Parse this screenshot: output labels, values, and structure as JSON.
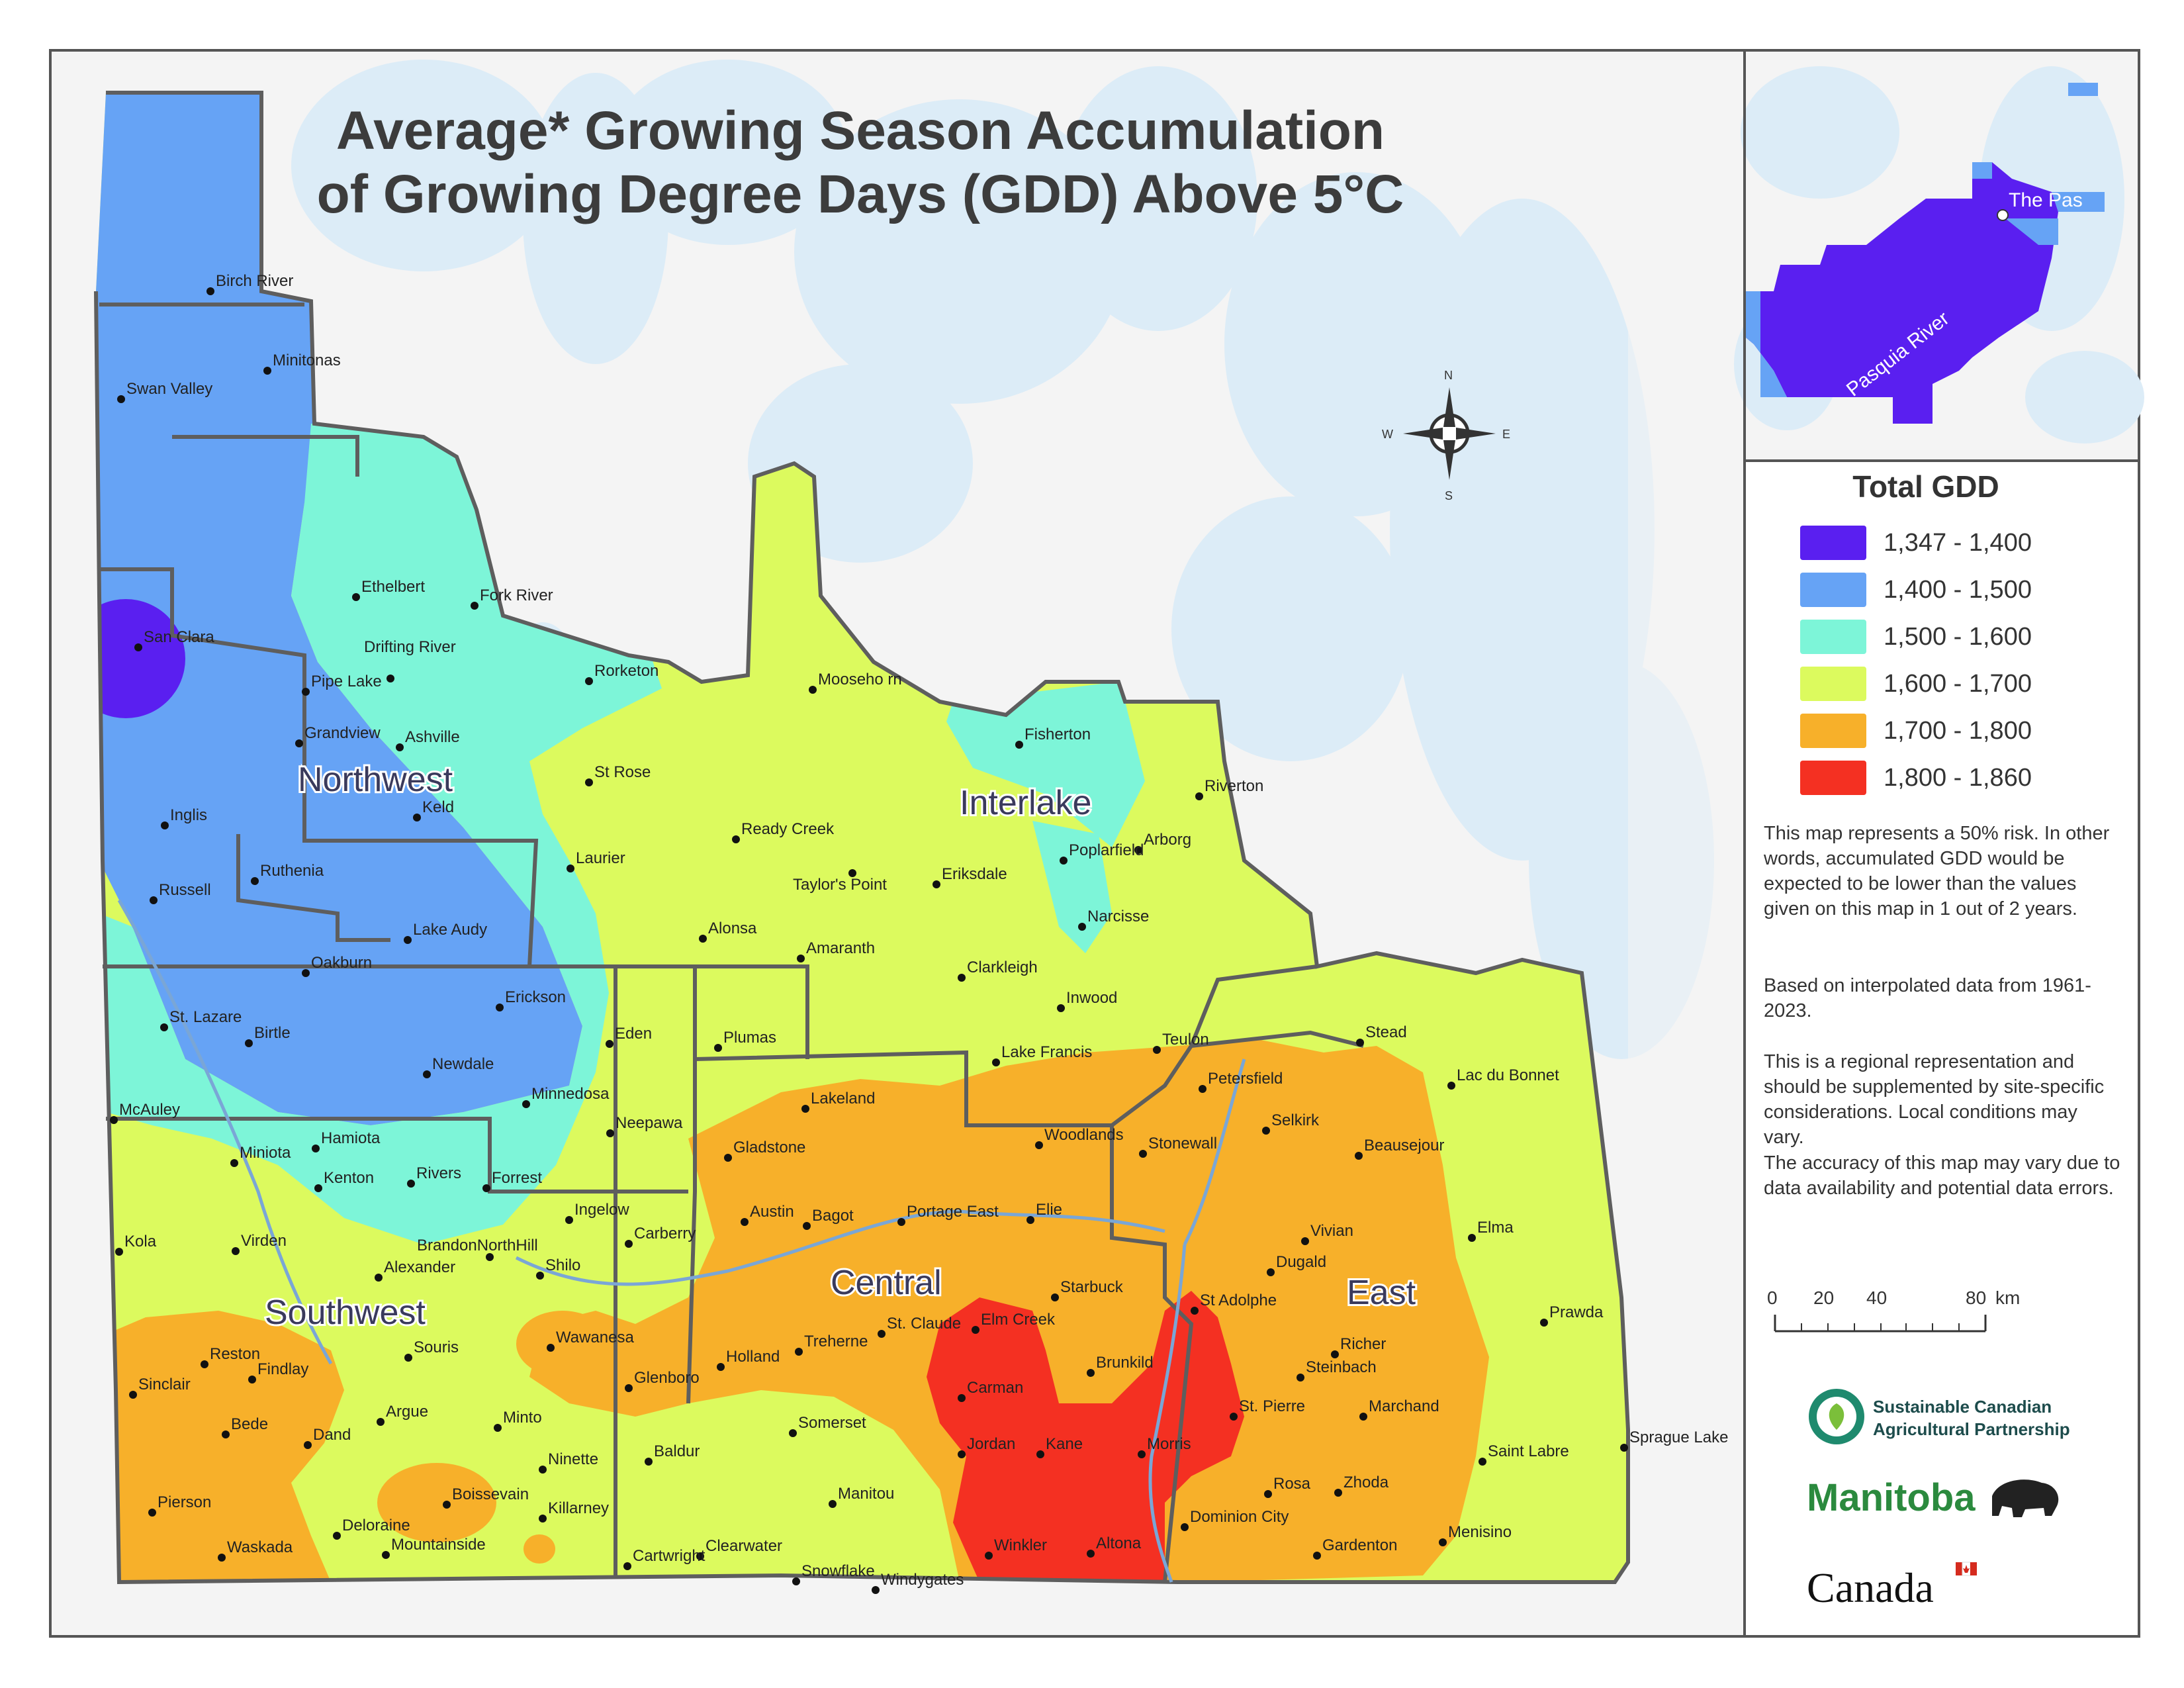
{
  "title": {
    "line1": "Average* Growing Season Accumulation",
    "line2": "of Growing Degree Days (GDD) Above 5°C"
  },
  "regions": [
    "Northwest",
    "Interlake",
    "Southwest",
    "Central",
    "East"
  ],
  "cities": [
    {
      "name": "Birch River"
    },
    {
      "name": "Minitonas"
    },
    {
      "name": "Swan Valley"
    },
    {
      "name": "Ethelbert"
    },
    {
      "name": "Fork River"
    },
    {
      "name": "San Clara"
    },
    {
      "name": "Drifting River"
    },
    {
      "name": "Pipe Lake"
    },
    {
      "name": "Rorketon"
    },
    {
      "name": "Mooseho rn"
    },
    {
      "name": "Grandview"
    },
    {
      "name": "Ashville"
    },
    {
      "name": "Fisherton"
    },
    {
      "name": "St Rose"
    },
    {
      "name": "Keld"
    },
    {
      "name": "Riverton"
    },
    {
      "name": "Inglis"
    },
    {
      "name": "Ready Creek"
    },
    {
      "name": "Arborg"
    },
    {
      "name": "Laurier"
    },
    {
      "name": "Poplarfield"
    },
    {
      "name": "Ruthenia"
    },
    {
      "name": "Taylor's Point"
    },
    {
      "name": "Eriksdale"
    },
    {
      "name": "Russell"
    },
    {
      "name": "Alonsa"
    },
    {
      "name": "Narcisse"
    },
    {
      "name": "Lake Audy"
    },
    {
      "name": "Amaranth"
    },
    {
      "name": "Oakburn"
    },
    {
      "name": "Clarkleigh"
    },
    {
      "name": "Erickson"
    },
    {
      "name": "Inwood"
    },
    {
      "name": "St. Lazare"
    },
    {
      "name": "Eden"
    },
    {
      "name": "Birtle"
    },
    {
      "name": "Plumas"
    },
    {
      "name": "Teulon"
    },
    {
      "name": "Stead"
    },
    {
      "name": "Newdale"
    },
    {
      "name": "Lake Francis"
    },
    {
      "name": "Petersfield"
    },
    {
      "name": "Lac du Bonnet"
    },
    {
      "name": "Minnedosa"
    },
    {
      "name": "Lakeland"
    },
    {
      "name": "McAuley"
    },
    {
      "name": "Neepawa"
    },
    {
      "name": "Hamiota"
    },
    {
      "name": "Miniota"
    },
    {
      "name": "Woodlands"
    },
    {
      "name": "Selkirk"
    },
    {
      "name": "Gladstone"
    },
    {
      "name": "Stonewall"
    },
    {
      "name": "Beausejour"
    },
    {
      "name": "Rivers"
    },
    {
      "name": "Forrest"
    },
    {
      "name": "Kenton"
    },
    {
      "name": "Ingelow"
    },
    {
      "name": "Portage East"
    },
    {
      "name": "Austin"
    },
    {
      "name": "Bagot"
    },
    {
      "name": "Elie"
    },
    {
      "name": "Vivian"
    },
    {
      "name": "Carberry"
    },
    {
      "name": "Elma"
    },
    {
      "name": "Kola"
    },
    {
      "name": "Virden"
    },
    {
      "name": "BrandonNorthHill"
    },
    {
      "name": "Dugald"
    },
    {
      "name": "Shilo"
    },
    {
      "name": "Alexander"
    },
    {
      "name": "Starbuck"
    },
    {
      "name": "St Adolphe"
    },
    {
      "name": "Prawda"
    },
    {
      "name": "Elm Creek"
    },
    {
      "name": "St. Claude"
    },
    {
      "name": "Wawanesa"
    },
    {
      "name": "Treherne"
    },
    {
      "name": "Richer"
    },
    {
      "name": "Reston"
    },
    {
      "name": "Souris"
    },
    {
      "name": "Brunkild"
    },
    {
      "name": "Steinbach"
    },
    {
      "name": "Holland"
    },
    {
      "name": "Findlay"
    },
    {
      "name": "Glenboro"
    },
    {
      "name": "Sinclair"
    },
    {
      "name": "Carman"
    },
    {
      "name": "St. Pierre"
    },
    {
      "name": "Marchand"
    },
    {
      "name": "Argue"
    },
    {
      "name": "Minto"
    },
    {
      "name": "Bede"
    },
    {
      "name": "Somerset"
    },
    {
      "name": "Dand"
    },
    {
      "name": "Sprague Lake"
    },
    {
      "name": "Jordan"
    },
    {
      "name": "Kane"
    },
    {
      "name": "Morris"
    },
    {
      "name": "Baldur"
    },
    {
      "name": "Saint Labre"
    },
    {
      "name": "Ninette"
    },
    {
      "name": "Zhoda"
    },
    {
      "name": "Rosa"
    },
    {
      "name": "Boissevain"
    },
    {
      "name": "Manitou"
    },
    {
      "name": "Pierson"
    },
    {
      "name": "Killarney"
    },
    {
      "name": "Dominion City"
    },
    {
      "name": "Deloraine"
    },
    {
      "name": "Menisino"
    },
    {
      "name": "Clearwater"
    },
    {
      "name": "Winkler"
    },
    {
      "name": "Mountainside"
    },
    {
      "name": "Waskada"
    },
    {
      "name": "Altona"
    },
    {
      "name": "Gardenton"
    },
    {
      "name": "Cartwright"
    },
    {
      "name": "Snowflake"
    },
    {
      "name": "Windygates"
    }
  ],
  "compass": {
    "n": "N",
    "s": "S",
    "e": "E",
    "w": "W"
  },
  "inset": {
    "town": "The Pas",
    "river": "Pasquia River"
  },
  "legend": {
    "title": "Total GDD",
    "items": [
      {
        "label": "1,347 - 1,400",
        "color": "#5a1ff0"
      },
      {
        "label": "1,400 - 1,500",
        "color": "#66a3f5"
      },
      {
        "label": "1,500 - 1,600",
        "color": "#7df5d8"
      },
      {
        "label": "1,600 - 1,700",
        "color": "#dcfa5e"
      },
      {
        "label": "1,700 - 1,800",
        "color": "#f7b02a"
      },
      {
        "label": "1,800 - 1,860",
        "color": "#f43022"
      }
    ]
  },
  "notes": [
    "This map represents a 50% risk. In other words, accumulated GDD would be expected to be lower than the values given on this map in 1 out of 2 years.",
    "Based on interpolated data from 1961-2023.",
    "This is a regional representation and should be supplemented by site-specific considerations. Local conditions may vary.",
    "The accuracy of this map may vary due to data availability and potential data errors."
  ],
  "scale": {
    "ticks": [
      "0",
      "20",
      "40",
      "80"
    ],
    "unit": "km"
  },
  "logos": {
    "scap_line1": "Sustainable Canadian",
    "scap_line2": "Agricultural Partnership",
    "manitoba": "Manitoba",
    "canada": "Canada"
  }
}
